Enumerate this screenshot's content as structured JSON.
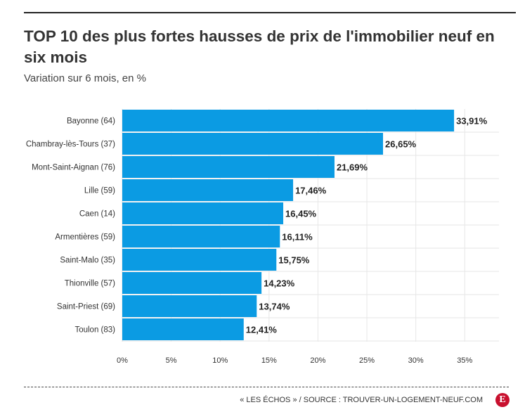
{
  "header": {
    "title": "TOP 10 des plus fortes hausses de prix de l'immobilier neuf en six mois",
    "subtitle": "Variation sur 6 mois, en %"
  },
  "footer": {
    "source": "« LES ÉCHOS » / SOURCE : TROUVER-UN-LOGEMENT-NEUF.COM",
    "logo_letter": "E"
  },
  "colors": {
    "bar": "#0b9be3",
    "grid": "#e6e6e6",
    "logo": "#c8102e"
  },
  "chart_data": {
    "type": "bar",
    "orientation": "horizontal",
    "title": "TOP 10 des plus fortes hausses de prix de l'immobilier neuf en six mois",
    "subtitle": "Variation sur 6 mois, en %",
    "categories": [
      "Bayonne (64)",
      "Chambray-lès-Tours (37)",
      "Mont-Saint-Aignan (76)",
      "Lille (59)",
      "Caen (14)",
      "Armentières (59)",
      "Saint-Malo (35)",
      "Thionville (57)",
      "Saint-Priest (69)",
      "Toulon (83)"
    ],
    "values": [
      33.91,
      26.65,
      21.69,
      17.46,
      16.45,
      16.11,
      15.75,
      14.23,
      13.74,
      12.41
    ],
    "value_labels": [
      "33,91%",
      "26,65%",
      "21,69%",
      "17,46%",
      "16,45%",
      "16,11%",
      "15,75%",
      "14,23%",
      "13,74%",
      "12,41%"
    ],
    "xticks": [
      0,
      5,
      10,
      15,
      20,
      25,
      30,
      35
    ],
    "xtick_labels": [
      "0%",
      "5%",
      "10%",
      "15%",
      "20%",
      "25%",
      "30%",
      "35%"
    ],
    "xlim": [
      0,
      38.5
    ],
    "grid": true
  }
}
